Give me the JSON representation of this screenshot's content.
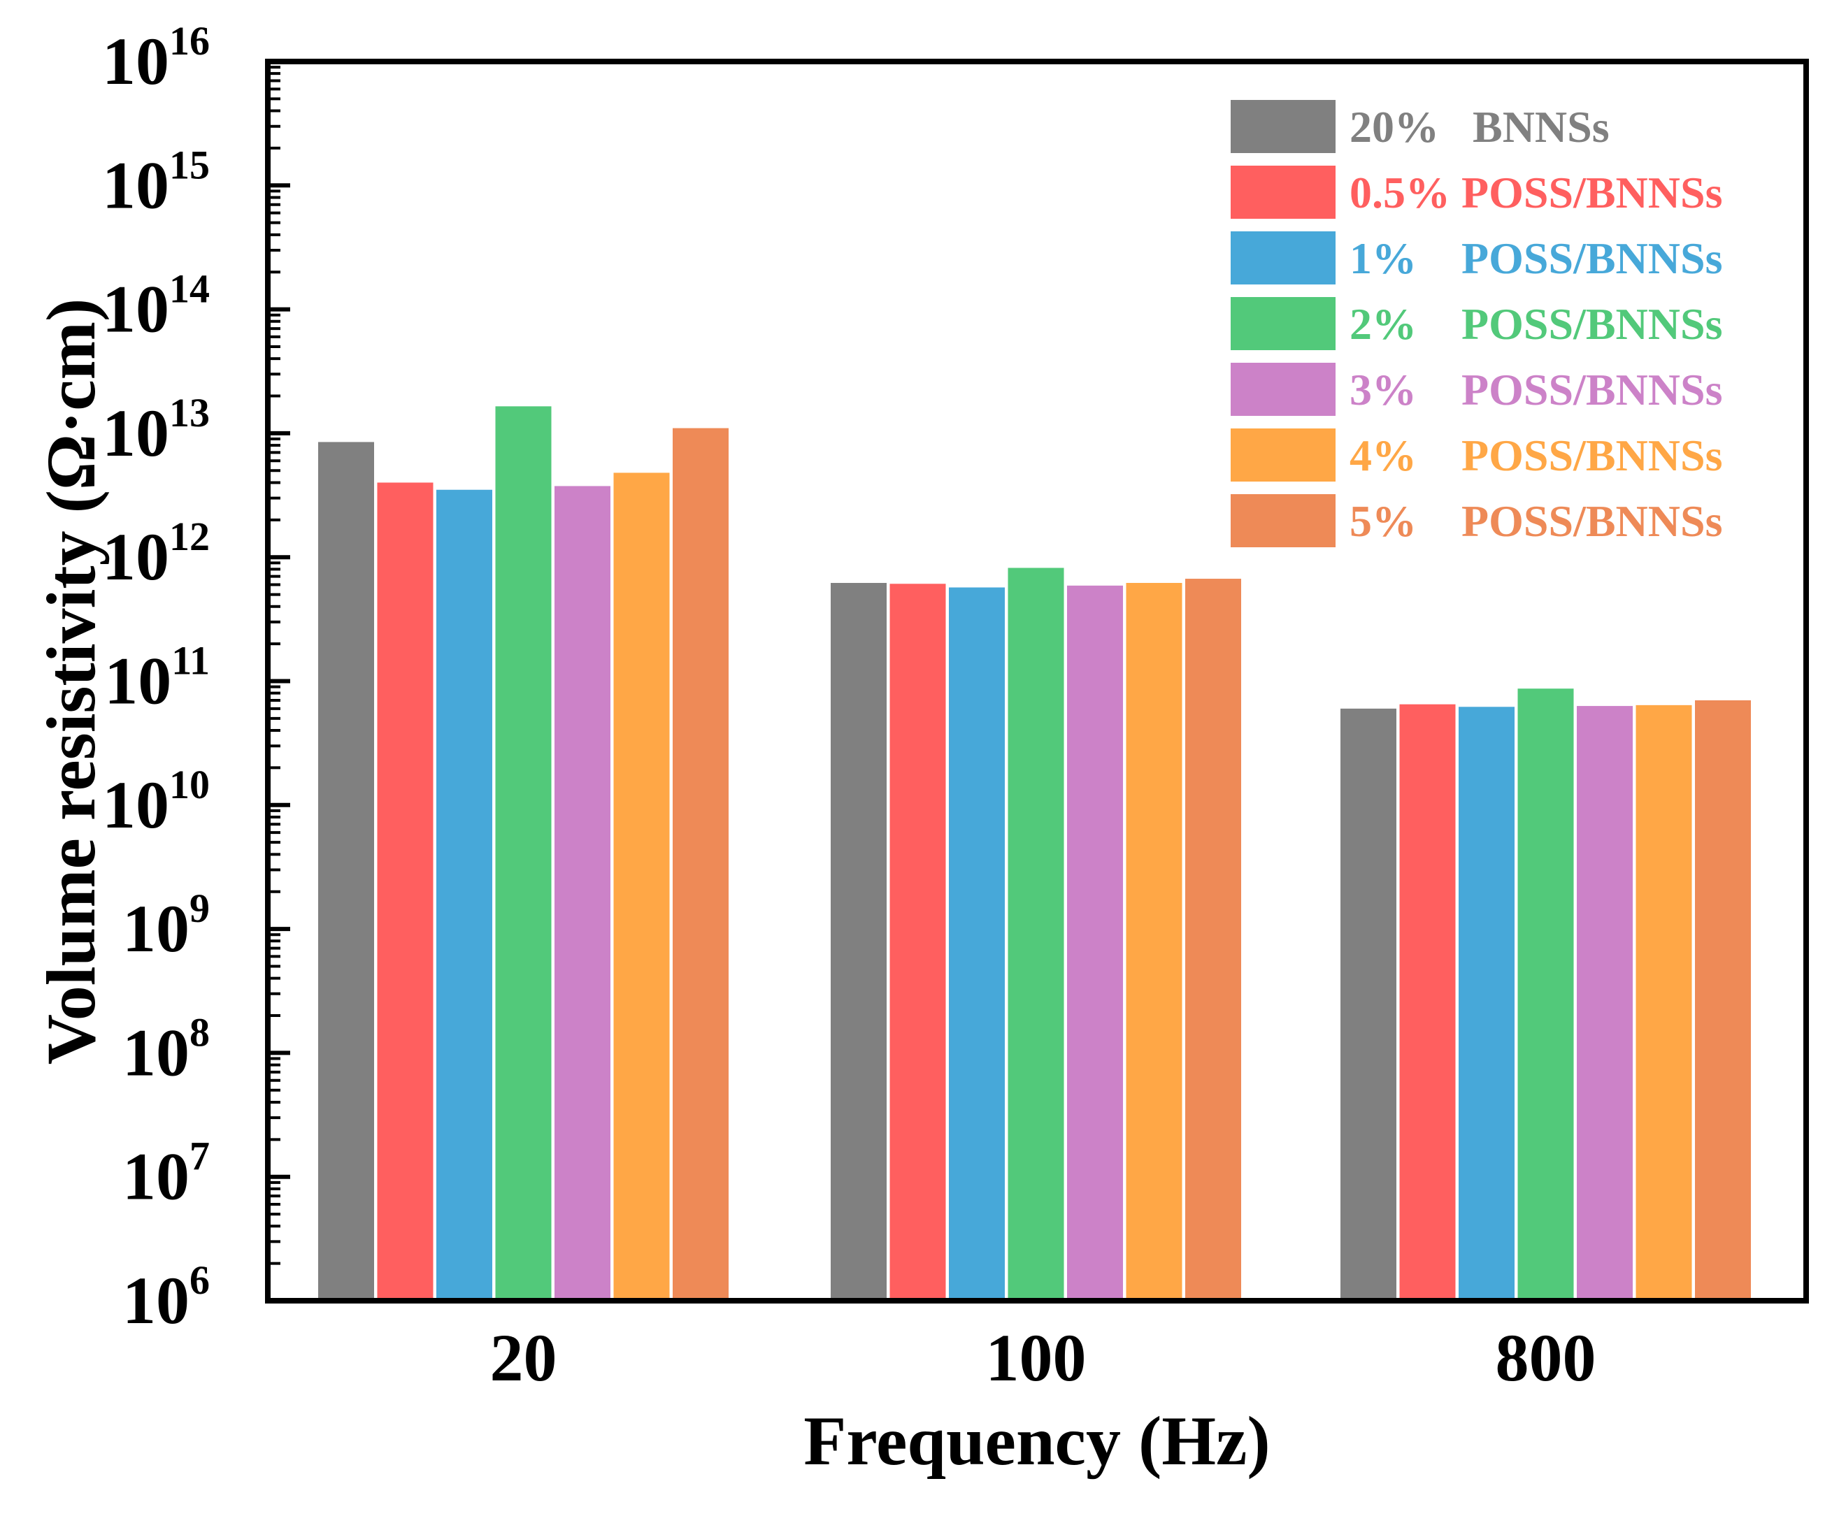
{
  "chart_data": {
    "type": "bar",
    "scale": "log",
    "xlabel": "Frequency (Hz)",
    "ylabel": "Volume resistivity (Ω·cm)",
    "categories": [
      "20",
      "100",
      "800"
    ],
    "ylim": [
      1000000.0,
      1e+16
    ],
    "y_ticks": [
      {
        "base": "10",
        "exp": "6"
      },
      {
        "base": "10",
        "exp": "7"
      },
      {
        "base": "10",
        "exp": "8"
      },
      {
        "base": "10",
        "exp": "9"
      },
      {
        "base": "10",
        "exp": "10"
      },
      {
        "base": "10",
        "exp": "11"
      },
      {
        "base": "10",
        "exp": "12"
      },
      {
        "base": "10",
        "exp": "13"
      },
      {
        "base": "10",
        "exp": "14"
      },
      {
        "base": "10",
        "exp": "15"
      },
      {
        "base": "10",
        "exp": "16"
      }
    ],
    "legend_position": "top-right",
    "series": [
      {
        "name": "20%   BNNSs",
        "color": "#808080",
        "values": [
          8500000000000.0,
          620000000000.0,
          60000000000.0
        ]
      },
      {
        "name": "0.5% POSS/BNNSs",
        "color": "#FF5F5F",
        "values": [
          4000000000000.0,
          610000000000.0,
          65000000000.0
        ]
      },
      {
        "name": "1%    POSS/BNNSs",
        "color": "#47A8D9",
        "values": [
          3500000000000.0,
          570000000000.0,
          62000000000.0
        ]
      },
      {
        "name": "2%    POSS/BNNSs",
        "color": "#52C97A",
        "values": [
          16500000000000.0,
          820000000000.0,
          87000000000.0
        ]
      },
      {
        "name": "3%    POSS/BNNSs",
        "color": "#CC82C8",
        "values": [
          3750000000000.0,
          590000000000.0,
          63000000000.0
        ]
      },
      {
        "name": "4%    POSS/BNNSs",
        "color": "#FFA746",
        "values": [
          4800000000000.0,
          620000000000.0,
          64000000000.0
        ]
      },
      {
        "name": "5%    POSS/BNNSs",
        "color": "#EE8A57",
        "values": [
          11000000000000.0,
          670000000000.0,
          70000000000.0
        ]
      }
    ]
  }
}
